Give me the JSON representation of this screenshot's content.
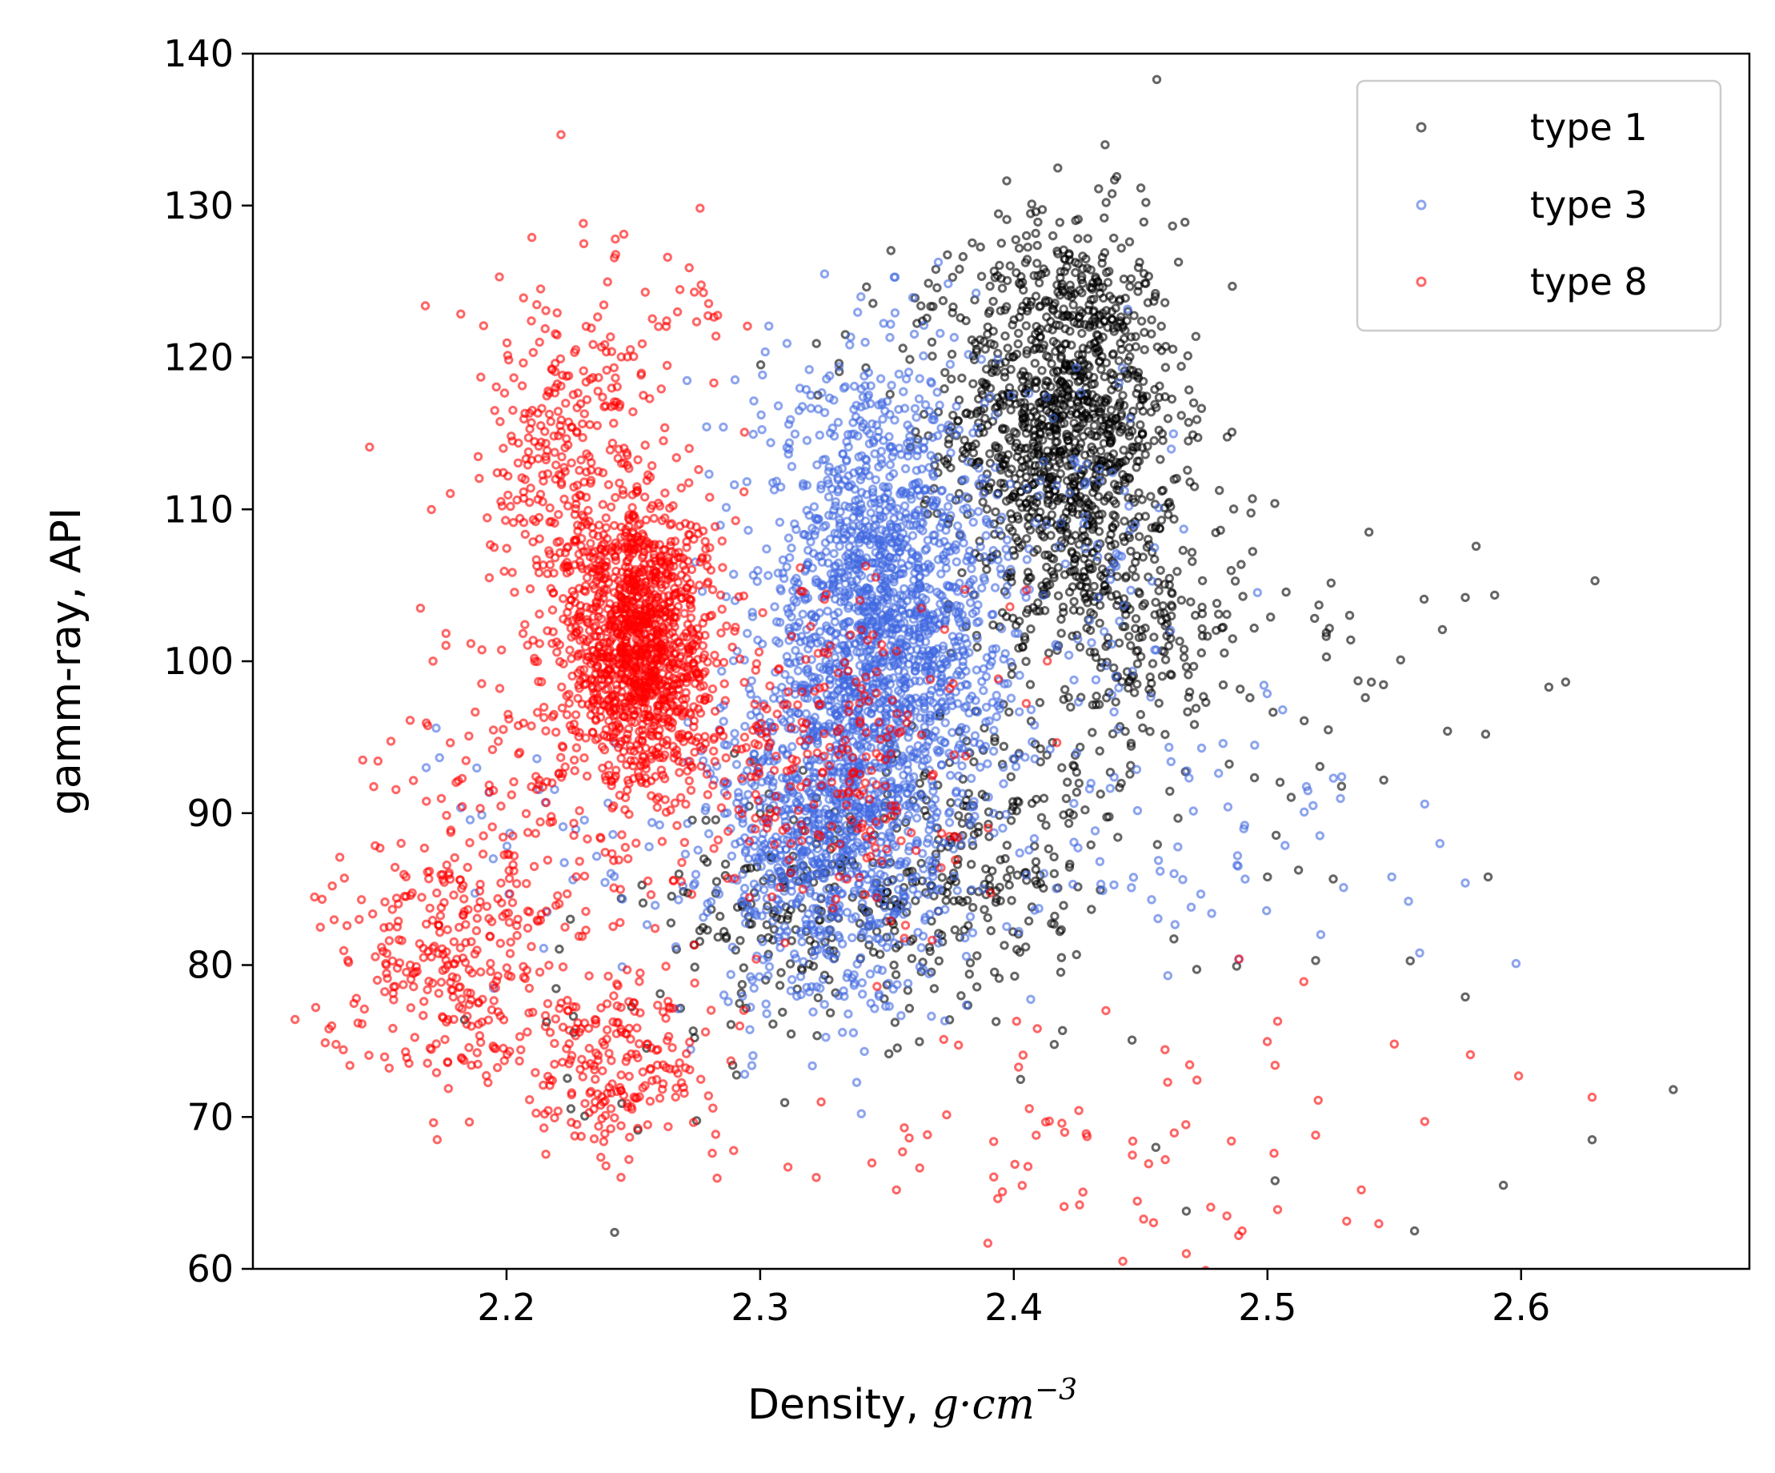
{
  "chart_data": {
    "type": "scatter",
    "title": "",
    "xlabel": "Density, ",
    "xlabel_math": "g·cm",
    "xlabel_exp": "−3",
    "ylabel": "gamm-ray, API",
    "xlim": [
      2.1,
      2.69
    ],
    "ylim": [
      60,
      140
    ],
    "xticks": [
      2.2,
      2.3,
      2.4,
      2.5,
      2.6
    ],
    "xtick_labels": [
      "2.2",
      "2.3",
      "2.4",
      "2.5",
      "2.6"
    ],
    "yticks": [
      60,
      70,
      80,
      90,
      100,
      110,
      120,
      130,
      140
    ],
    "ytick_labels": [
      "60",
      "70",
      "80",
      "90",
      "100",
      "110",
      "120",
      "130",
      "140"
    ],
    "legend": {
      "position": "top-right"
    },
    "series": [
      {
        "name": "type 1",
        "color": "#000000",
        "clusters": [
          {
            "cx": 2.42,
            "cy": 116,
            "sx": 0.022,
            "sy": 6.5,
            "n": 1200
          },
          {
            "cx": 2.445,
            "cy": 103,
            "sx": 0.025,
            "sy": 5,
            "n": 250
          },
          {
            "cx": 2.33,
            "cy": 84,
            "sx": 0.035,
            "sy": 4,
            "n": 280
          },
          {
            "cx": 2.39,
            "cy": 88,
            "sx": 0.02,
            "sy": 5,
            "n": 150
          },
          {
            "cx": 2.5,
            "cy": 96,
            "sx": 0.045,
            "sy": 8,
            "n": 70
          },
          {
            "cx": 2.37,
            "cy": 122,
            "sx": 0.03,
            "sy": 3,
            "n": 25
          },
          {
            "cx": 2.24,
            "cy": 74,
            "sx": 0.03,
            "sy": 4,
            "n": 20
          }
        ],
        "points": [
          {
            "x": 2.436,
            "y": 134
          },
          {
            "x": 2.66,
            "y": 71.8
          },
          {
            "x": 2.628,
            "y": 68.5
          },
          {
            "x": 2.593,
            "y": 65.5
          },
          {
            "x": 2.558,
            "y": 62.5
          },
          {
            "x": 2.586,
            "y": 95.2
          },
          {
            "x": 2.571,
            "y": 95.4
          },
          {
            "x": 2.578,
            "y": 104.2
          },
          {
            "x": 2.578,
            "y": 77.9
          },
          {
            "x": 2.587,
            "y": 85.8
          },
          {
            "x": 2.54,
            "y": 108.5
          },
          {
            "x": 2.519,
            "y": 80.3
          },
          {
            "x": 2.5,
            "y": 85.8
          },
          {
            "x": 2.456,
            "y": 68
          },
          {
            "x": 2.468,
            "y": 63.8
          },
          {
            "x": 2.503,
            "y": 65.8
          }
        ]
      },
      {
        "name": "type 3",
        "color": "#4169e1",
        "clusters": [
          {
            "cx": 2.345,
            "cy": 103,
            "sx": 0.022,
            "sy": 7.5,
            "n": 1400
          },
          {
            "cx": 2.325,
            "cy": 88,
            "sx": 0.022,
            "sy": 5.5,
            "n": 800
          },
          {
            "cx": 2.37,
            "cy": 100,
            "sx": 0.02,
            "sy": 6,
            "n": 300
          },
          {
            "cx": 2.43,
            "cy": 107,
            "sx": 0.015,
            "sy": 7,
            "n": 80
          },
          {
            "cx": 2.46,
            "cy": 88,
            "sx": 0.05,
            "sy": 5,
            "n": 70
          },
          {
            "cx": 2.22,
            "cy": 88,
            "sx": 0.03,
            "sy": 4,
            "n": 40
          },
          {
            "cx": 2.33,
            "cy": 118,
            "sx": 0.03,
            "sy": 3,
            "n": 40
          }
        ],
        "points": [
          {
            "x": 2.598,
            "y": 80.1
          },
          {
            "x": 2.578,
            "y": 85.4
          },
          {
            "x": 2.568,
            "y": 88
          },
          {
            "x": 2.562,
            "y": 90.6
          },
          {
            "x": 2.56,
            "y": 80.8
          },
          {
            "x": 2.549,
            "y": 85.8
          },
          {
            "x": 2.53,
            "y": 85.1
          },
          {
            "x": 2.526,
            "y": 92.3
          },
          {
            "x": 2.518,
            "y": 90.5
          },
          {
            "x": 2.506,
            "y": 96.8
          },
          {
            "x": 2.491,
            "y": 89.2
          },
          {
            "x": 2.478,
            "y": 83.4
          },
          {
            "x": 2.521,
            "y": 82
          }
        ]
      },
      {
        "name": "type 8",
        "color": "#ff0000",
        "clusters": [
          {
            "cx": 2.252,
            "cy": 101,
            "sx": 0.014,
            "sy": 4.5,
            "n": 1200
          },
          {
            "cx": 2.23,
            "cy": 112,
            "sx": 0.02,
            "sy": 6,
            "n": 350
          },
          {
            "cx": 2.175,
            "cy": 80,
            "sx": 0.022,
            "sy": 4,
            "n": 260
          },
          {
            "cx": 2.245,
            "cy": 73,
            "sx": 0.018,
            "sy": 3,
            "n": 200
          },
          {
            "cx": 2.32,
            "cy": 94,
            "sx": 0.03,
            "sy": 5.5,
            "n": 300
          },
          {
            "cx": 2.205,
            "cy": 90,
            "sx": 0.025,
            "sy": 6,
            "n": 160
          },
          {
            "cx": 2.42,
            "cy": 68,
            "sx": 0.06,
            "sy": 5,
            "n": 70
          },
          {
            "cx": 2.26,
            "cy": 123,
            "sx": 0.02,
            "sy": 2.5,
            "n": 30
          }
        ],
        "points": [
          {
            "x": 2.13,
            "y": 75.8
          },
          {
            "x": 2.146,
            "y": 114.1
          },
          {
            "x": 2.168,
            "y": 123.4
          },
          {
            "x": 2.21,
            "y": 127.9
          },
          {
            "x": 2.272,
            "y": 125.9
          },
          {
            "x": 2.628,
            "y": 71.3
          },
          {
            "x": 2.599,
            "y": 72.7
          },
          {
            "x": 2.58,
            "y": 74.1
          },
          {
            "x": 2.55,
            "y": 74.8
          },
          {
            "x": 2.562,
            "y": 69.7
          },
          {
            "x": 2.537,
            "y": 65.2
          },
          {
            "x": 2.52,
            "y": 71.1
          },
          {
            "x": 2.519,
            "y": 68.8
          },
          {
            "x": 2.504,
            "y": 63.9
          },
          {
            "x": 2.503,
            "y": 73.4
          },
          {
            "x": 2.49,
            "y": 62.5
          },
          {
            "x": 2.468,
            "y": 61
          },
          {
            "x": 2.443,
            "y": 60.5
          },
          {
            "x": 2.504,
            "y": 76.3
          }
        ]
      }
    ]
  }
}
